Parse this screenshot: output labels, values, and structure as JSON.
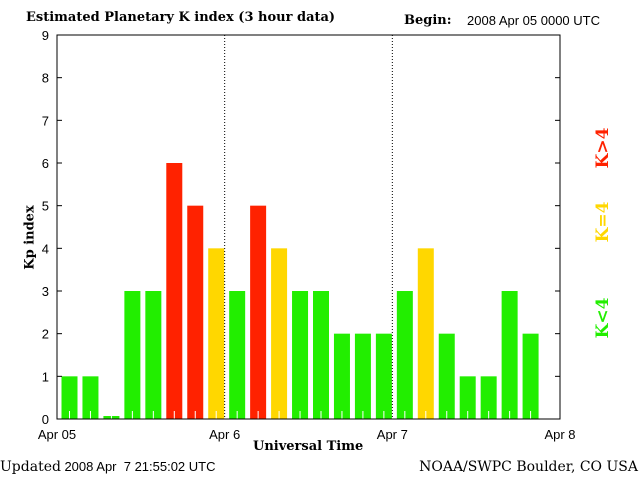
{
  "chart_data": {
    "type": "bar",
    "title": "Estimated Planetary K index (3 hour data)",
    "begin_label": "Begin:",
    "begin_value": "2008 Apr 05 0000 UTC",
    "xlabel": "Universal Time",
    "ylabel": "Kp index",
    "ylim": [
      0,
      9
    ],
    "yticks": [
      "0",
      "1",
      "2",
      "3",
      "4",
      "5",
      "6",
      "7",
      "8",
      "9"
    ],
    "xticks": [
      "Apr 05",
      "Apr 6",
      "Apr 7",
      "Apr 8"
    ],
    "slots_total": 24,
    "values": [
      1,
      1,
      0,
      3,
      3,
      6,
      5,
      4,
      3,
      5,
      4,
      3,
      3,
      2,
      2,
      2,
      3,
      4,
      2,
      1,
      1,
      3,
      2
    ],
    "colors": {
      "low": "#22ee00",
      "equal": "#ffd700",
      "high": "#ff2200"
    },
    "legend": [
      {
        "label": "K<4",
        "color": "#22ee00"
      },
      {
        "label": "K=4",
        "color": "#ffd700"
      },
      {
        "label": "K>4",
        "color": "#ff2200"
      }
    ]
  },
  "footer": {
    "updated_label": "Updated",
    "updated_value": "2008 Apr  7 21:55:02 UTC",
    "source": "NOAA/SWPC Boulder, CO USA"
  }
}
